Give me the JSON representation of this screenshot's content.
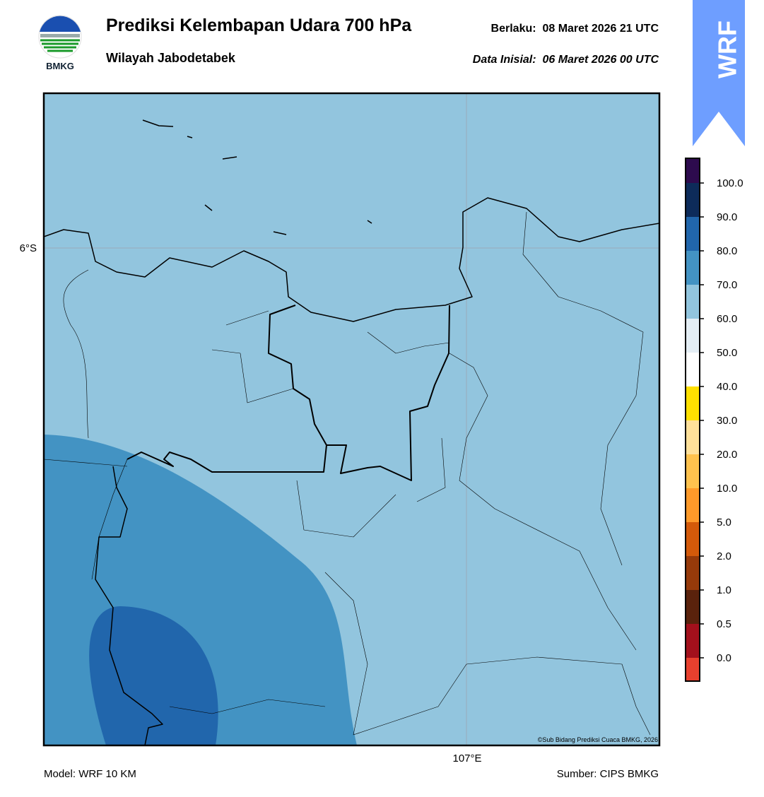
{
  "header": {
    "title": "Prediksi Kelembapan Udara 700 hPa",
    "subtitle": "Wilayah Jabodetabek",
    "valid": "Berlaku:  08 Maret 2026 21 UTC",
    "init": "Data Inisial:  06 Maret 2026 00 UTC",
    "logo": "BMKG",
    "badge": "WRF"
  },
  "map": {
    "lat_label": "6°S",
    "lon_label": "107°E",
    "credit": "©Sub Bidang Prediksi Cuaca BMKG, 2026"
  },
  "colorbar": {
    "colors": [
      "#2d0b4e",
      "#0d2b5a",
      "#2166ac",
      "#4393c3",
      "#92c5de",
      "#e4eef5",
      "#ffffff",
      "#ffe000",
      "#ffe09a",
      "#ffc24e",
      "#ff9a2a",
      "#d45a0a",
      "#963a0a",
      "#5a220c",
      "#a3101c",
      "#e8402e"
    ],
    "labels": [
      "100.0",
      "90.0",
      "80.0",
      "70.0",
      "60.0",
      "50.0",
      "40.0",
      "30.0",
      "20.0",
      "10.0",
      "5.0",
      "2.0",
      "1.0",
      "0.5",
      "0.0"
    ]
  },
  "footer": {
    "model": "Model: WRF 10 KM",
    "source": "Sumber: CIPS BMKG"
  }
}
